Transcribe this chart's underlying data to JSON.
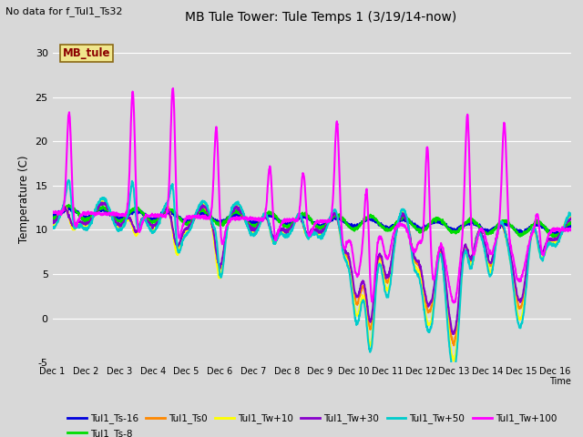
{
  "title": "MB Tule Tower: Tule Temps 1 (3/19/14-now)",
  "subtitle": "No data for f_Tul1_Ts32",
  "ylabel": "Temperature (C)",
  "xlabel": "Time",
  "ylim": [
    -5,
    32
  ],
  "yticks": [
    -5,
    0,
    5,
    10,
    15,
    20,
    25,
    30
  ],
  "xtick_labels": [
    "Dec 1",
    "Dec 2",
    "Dec 3",
    "Dec 4",
    "Dec 5",
    "Dec 6",
    "Dec 7",
    "Dec 8",
    "Dec 9",
    "Dec 10",
    "Dec 11",
    "Dec 12",
    "Dec 13",
    "Dec 14",
    "Dec 15",
    "Dec 16"
  ],
  "background_color": "#d8d8d8",
  "plot_bg_color": "#d8d8d8",
  "grid_color": "#ffffff",
  "legend_box_text": "MB_tule",
  "series": [
    {
      "label": "Tul1_Ts-16",
      "color": "#0000dd",
      "lw": 1.5
    },
    {
      "label": "Tul1_Ts-8",
      "color": "#00dd00",
      "lw": 1.5
    },
    {
      "label": "Tul1_Ts0",
      "color": "#ff8800",
      "lw": 1.5
    },
    {
      "label": "Tul1_Tw+10",
      "color": "#ffff00",
      "lw": 1.5
    },
    {
      "label": "Tul1_Tw+30",
      "color": "#8800cc",
      "lw": 1.5
    },
    {
      "label": "Tul1_Tw+50",
      "color": "#00cccc",
      "lw": 1.5
    },
    {
      "label": "Tul1_Tw+100",
      "color": "#ff00ff",
      "lw": 1.5
    }
  ]
}
